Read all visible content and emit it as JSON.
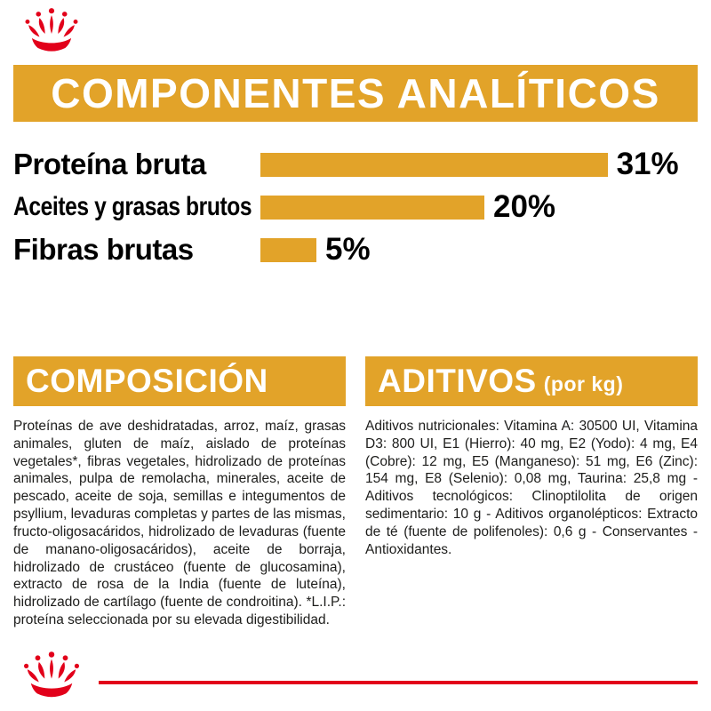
{
  "brand": {
    "logo": "royal-canin-crown-logo",
    "colors": {
      "gold": "#E2A329",
      "red": "#E2001A",
      "text": "#1D1D1B"
    }
  },
  "chart_data": {
    "type": "bar",
    "orientation": "horizontal",
    "title": "COMPONENTES ANALÍTICOS",
    "categories": [
      "Proteína bruta",
      "Aceites y grasas brutos",
      "Fibras brutas"
    ],
    "values": [
      31,
      20,
      5
    ],
    "value_labels": [
      "31%",
      "20%",
      "5%"
    ],
    "unit": "%",
    "xlim": [
      0,
      35
    ],
    "bar_color": "#E2A329",
    "grid": false,
    "legend": false
  },
  "composition": {
    "title": "COMPOSICIÓN",
    "body": "Proteínas de ave deshidratadas, arroz, maíz, grasas animales, gluten de maíz, aislado de proteínas vegetales*, fibras vegetales, hidrolizado de proteínas animales, pulpa de remolacha, minerales, aceite de pescado, aceite de soja, semillas e integumentos de psyllium, levaduras completas y partes de las mismas, fructo-oligosacáridos, hidrolizado de levaduras (fuente de manano-oligosacáridos), aceite de borraja, hidrolizado de crustáceo (fuente de glucosamina), extracto de rosa de la India (fuente de luteína), hidrolizado de cartílago (fuente de condroitina). *L.I.P.: proteína seleccionada por su elevada digestibilidad."
  },
  "additives": {
    "title": "ADITIVOS",
    "title_suffix": "(por kg)",
    "body": "Aditivos nutricionales: Vitamina A: 30500 UI, Vitamina D3: 800 UI, E1 (Hierro): 40 mg, E2 (Yodo): 4 mg, E4 (Cobre): 12 mg, E5 (Manganeso): 51 mg, E6 (Zinc): 154 mg, E8 (Selenio): 0,08 mg, Taurina: 25,8 mg - Aditivos tecnológicos: Clinoptilolita de origen sedimentario: 10 g - Aditivos organolépticos: Extracto de té (fuente de polifenoles): 0,6 g - Conservantes - Antioxidantes."
  }
}
